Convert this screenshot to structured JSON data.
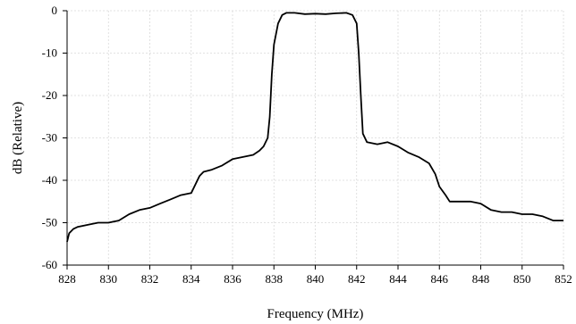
{
  "chart_data": {
    "type": "line",
    "title": "",
    "xlabel": "Frequency (MHz)",
    "ylabel": "dB (Relative)",
    "xlim": [
      828,
      852
    ],
    "ylim": [
      -60,
      0
    ],
    "x_ticks": [
      828,
      830,
      832,
      834,
      836,
      838,
      840,
      842,
      844,
      846,
      848,
      850,
      852
    ],
    "y_ticks": [
      0,
      -10,
      -20,
      -30,
      -40,
      -50,
      -60
    ],
    "y_tick_labels": [
      "0",
      "-10",
      "-20",
      "-30",
      "-40",
      "-50",
      "-60"
    ],
    "grid": true,
    "legend": "none",
    "line_color": "#000000",
    "series": [
      {
        "x": [
          828,
          828.1,
          828.3,
          828.5,
          829,
          829.5,
          830,
          830.5,
          831,
          831.5,
          832,
          832.5,
          833,
          833.5,
          834,
          834.2,
          834.4,
          834.6,
          835,
          835.5,
          836,
          836.5,
          837,
          837.3,
          837.5,
          837.7,
          837.8,
          837.9,
          838,
          838.2,
          838.4,
          838.6,
          839,
          839.5,
          840,
          840.5,
          841,
          841.5,
          841.8,
          842,
          842.1,
          842.2,
          842.3,
          842.5,
          843,
          843.5,
          844,
          844.5,
          845,
          845.5,
          845.8,
          846,
          846.3,
          846.5,
          847,
          847.5,
          848,
          848.5,
          849,
          849.5,
          850,
          850.5,
          851,
          851.5,
          852
        ],
        "y": [
          -54.5,
          -52.5,
          -51.5,
          -51,
          -50.5,
          -50,
          -50,
          -49.5,
          -48,
          -47,
          -46.5,
          -45.5,
          -44.5,
          -43.5,
          -43,
          -41,
          -39,
          -38,
          -37.5,
          -36.5,
          -35,
          -34.5,
          -34,
          -33,
          -32,
          -30,
          -25,
          -15,
          -8,
          -3,
          -1,
          -0.5,
          -0.5,
          -0.8,
          -0.7,
          -0.8,
          -0.6,
          -0.5,
          -1,
          -3,
          -10,
          -20,
          -29,
          -31,
          -31.5,
          -31,
          -32,
          -33.5,
          -34.5,
          -36,
          -38.5,
          -41.5,
          -43.5,
          -45,
          -45,
          -45,
          -45.5,
          -47,
          -47.5,
          -47.5,
          -48,
          -48,
          -48.5,
          -49.5,
          -49.5
        ]
      }
    ]
  }
}
